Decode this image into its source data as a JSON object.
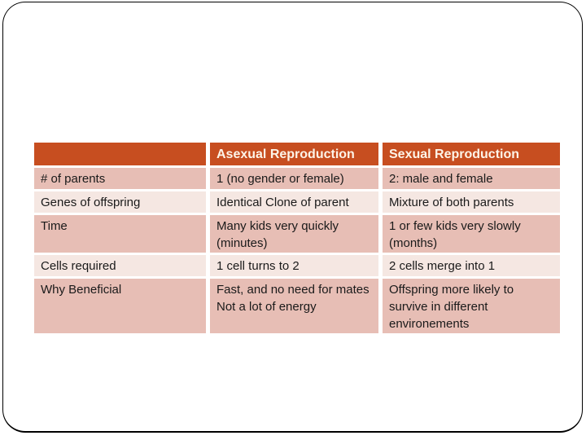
{
  "slide": {
    "background": "#ffffff",
    "border_color": "#000000"
  },
  "table": {
    "headers": [
      "",
      "Asexual Reproduction",
      "Sexual Reproduction"
    ],
    "rows": [
      {
        "label": "# of parents",
        "asexual": "1 (no gender or female)",
        "sexual": "2: male and female"
      },
      {
        "label": "Genes of offspring",
        "asexual": "Identical Clone of parent",
        "sexual": "Mixture of both parents"
      },
      {
        "label": "Time",
        "asexual": "Many kids very quickly (minutes)",
        "sexual": "1 or few kids very slowly (months)"
      },
      {
        "label": "Cells required",
        "asexual": "1 cell turns to 2",
        "sexual": "2 cells merge into 1"
      },
      {
        "label": "Why Beneficial",
        "asexual": "Fast, and no need for mates\nNot a lot of energy",
        "sexual": "Offspring more likely to survive in different environements"
      }
    ],
    "colors": {
      "header_bg": "#c74e20",
      "header_text": "#fdf4e8",
      "row_odd_bg": "#e7beb5",
      "row_even_bg": "#f5e7e2",
      "body_text": "#1a1a1a",
      "slide_border": "#000000",
      "slide_bg": "#ffffff"
    }
  }
}
